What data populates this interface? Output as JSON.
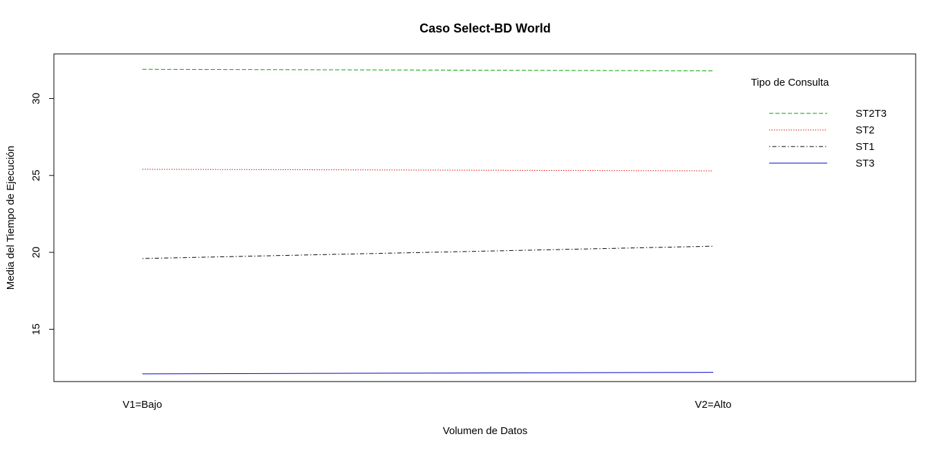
{
  "chart_data": {
    "type": "line",
    "title": "Caso Select-BD World",
    "xlabel": "Volumen de Datos",
    "ylabel": "Media del Tiempo de Ejecución",
    "categories": [
      "V1=Bajo",
      "V2=Alto"
    ],
    "y_ticks": [
      "15",
      "20",
      "25",
      "30"
    ],
    "ylim": [
      11.6,
      32.9
    ],
    "grid": false,
    "legend": {
      "title": "Tipo de Consulta",
      "placement": "top-right"
    },
    "series": [
      {
        "name": "ST2T3",
        "values": [
          31.9,
          31.8
        ],
        "color": "#00a000",
        "style": "dashed"
      },
      {
        "name": "ST2",
        "values": [
          25.4,
          25.3
        ],
        "color": "#e00000",
        "style": "dotted"
      },
      {
        "name": "ST1",
        "values": [
          19.6,
          20.4
        ],
        "color": "#000000",
        "style": "dotdash"
      },
      {
        "name": "ST3",
        "values": [
          12.1,
          12.2
        ],
        "color": "#0000c0",
        "style": "solid"
      }
    ]
  }
}
